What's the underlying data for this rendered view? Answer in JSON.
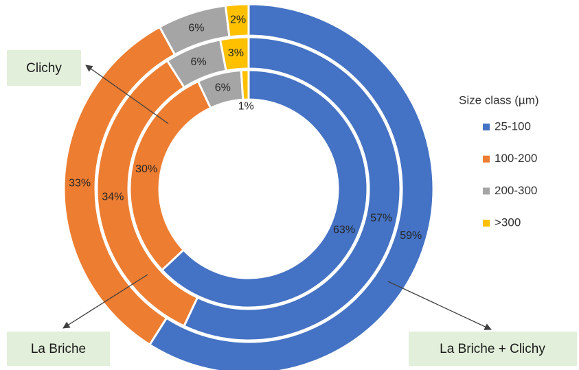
{
  "chart_data": {
    "type": "pie",
    "legend_title": "Size class (µm)",
    "categories": [
      "25-100",
      "100-200",
      "200-300",
      ">300"
    ],
    "colors": [
      "#4472c4",
      "#ed7d31",
      "#a5a5a5",
      "#ffc000"
    ],
    "rings": [
      {
        "label": "Clichy",
        "values": [
          63,
          30,
          6,
          1
        ],
        "value_labels": [
          "63%",
          "30%",
          "6%",
          "1%"
        ]
      },
      {
        "label": "La Briche",
        "values": [
          57,
          34,
          6,
          3
        ],
        "value_labels": [
          "57%",
          "34%",
          "6%",
          "3%"
        ]
      },
      {
        "label": "La Briche + Clichy",
        "values": [
          59,
          33,
          6,
          2
        ],
        "value_labels": [
          "59%",
          "33%",
          "6%",
          "2%"
        ]
      }
    ]
  }
}
